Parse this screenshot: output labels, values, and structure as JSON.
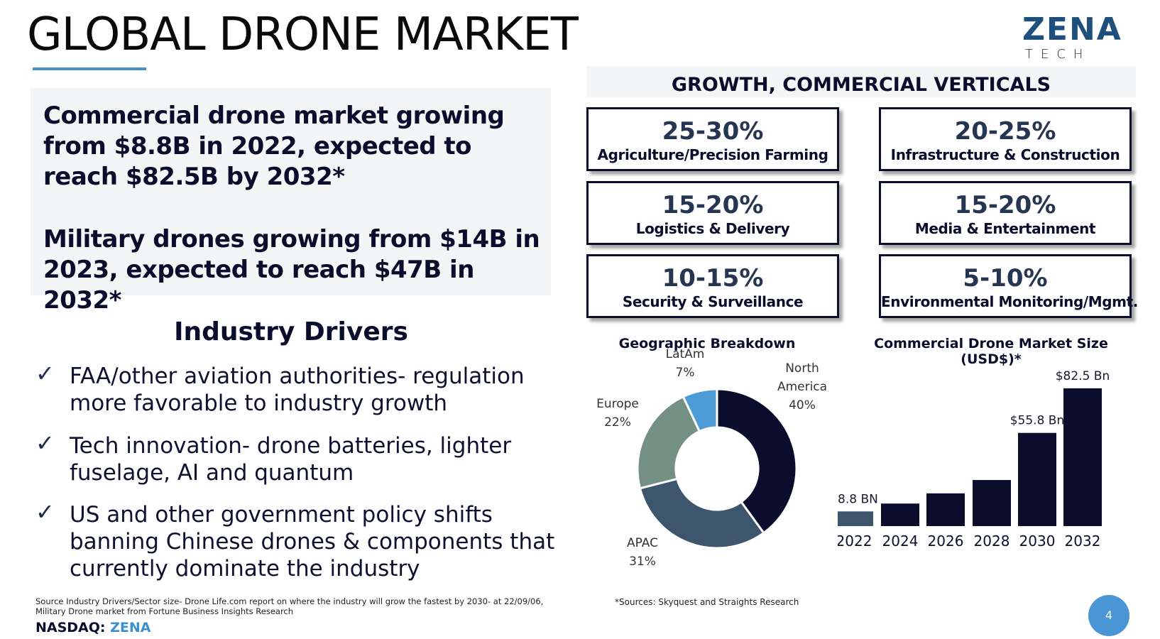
{
  "title": "GLOBAL DRONE MARKET",
  "logo": {
    "word": "ZENA",
    "sub": "TECH"
  },
  "headlines": [
    "Commercial drone market growing from $8.8B in 2022, expected to reach $82.5B by 2032*",
    "Military drones growing from $14B in 2023, expected to reach $47B in 2032*"
  ],
  "drivers": {
    "title": "Industry Drivers",
    "items": [
      "FAA/other aviation authorities- regulation more favorable to industry growth",
      "Tech innovation- drone batteries, lighter fuselage, AI and quantum",
      "US and other government policy shifts banning Chinese drones & components that currently dominate the industry"
    ]
  },
  "growth": {
    "header": "GROWTH, COMMERCIAL VERTICALS",
    "cards": [
      {
        "pct": "25-30%",
        "label": "Agriculture/Precision Farming"
      },
      {
        "pct": "20-25%",
        "label": "Infrastructure & Construction"
      },
      {
        "pct": "15-20%",
        "label": "Logistics & Delivery"
      },
      {
        "pct": "15-20%",
        "label": "Media & Entertainment"
      },
      {
        "pct": "10-15%",
        "label": "Security & Surveillance"
      },
      {
        "pct": "5-10%",
        "label": "Environmental Monitoring/Mgmt."
      }
    ]
  },
  "footer": {
    "source": "Source Industry Drivers/Sector size- Drone Life.com report on where the industry will grow the fastest by 2030- at 22/09/06, Military Drone market from Fortune Business Insights Research",
    "nasdaq_prefix": "NASDAQ: ",
    "nasdaq_ticker": "ZENA",
    "sources": "*Sources: Skyquest and Straights Research",
    "page": "4"
  },
  "colors": {
    "navy": "#0b0d2c",
    "slate": "#3d566e",
    "sage": "#748f84",
    "sky": "#4d9bd6",
    "accent": "#4a95d3"
  },
  "chart_data": [
    {
      "type": "pie",
      "title": "Geographic Breakdown",
      "categories": [
        "North America",
        "APAC",
        "Europe",
        "LatAm"
      ],
      "values": [
        40,
        31,
        22,
        7
      ],
      "labels": [
        {
          "name": "North America",
          "lines": [
            "North",
            "America"
          ],
          "value": "40%"
        },
        {
          "name": "APAC",
          "lines": [
            "APAC"
          ],
          "value": "31%"
        },
        {
          "name": "Europe",
          "lines": [
            "Europe"
          ],
          "value": "22%"
        },
        {
          "name": "LatAm",
          "lines": [
            "LatAm"
          ],
          "value": "7%"
        }
      ],
      "colors": [
        "#0b0d2c",
        "#3d566e",
        "#748f84",
        "#4d9bd6"
      ]
    },
    {
      "type": "bar",
      "title": "Commercial Drone Market Size (USD$)*",
      "categories": [
        "2022",
        "2024",
        "2026",
        "2028",
        "2030",
        "2032"
      ],
      "values": [
        8.8,
        13.5,
        19.6,
        27.6,
        55.8,
        82.5
      ],
      "data_labels": [
        "$8.8 BN",
        "",
        "",
        "",
        "$55.8 Bn",
        "$82.5 Bn"
      ],
      "colors": [
        "#3d566e",
        "#0b0d2c",
        "#0b0d2c",
        "#0b0d2c",
        "#0b0d2c",
        "#0b0d2c"
      ],
      "ylim": [
        0,
        85
      ]
    }
  ]
}
